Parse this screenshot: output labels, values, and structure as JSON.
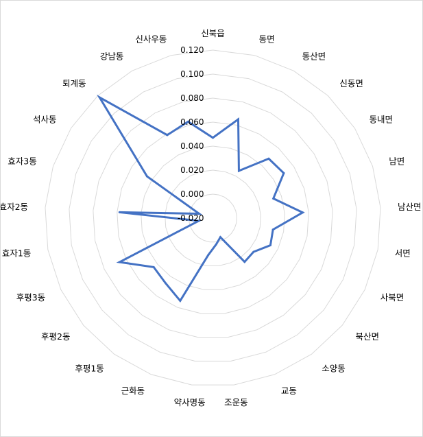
{
  "chart_data": {
    "type": "radar",
    "title": "",
    "categories": [
      "신북읍",
      "동면",
      "동산면",
      "신동면",
      "동내면",
      "남면",
      "남산면",
      "서면",
      "사북면",
      "북산면",
      "소양동",
      "교동",
      "조운동",
      "약사명동",
      "근화동",
      "후평1동",
      "후평2동",
      "후평3동",
      "효자1동",
      "효자2동",
      "효자3동",
      "석사동",
      "퇴계동",
      "강남동",
      "신사우동"
    ],
    "series": [
      {
        "color": "#4472c4",
        "values": [
          0.047,
          0.065,
          0.025,
          0.048,
          0.05,
          0.033,
          0.055,
          0.031,
          0.033,
          0.024,
          0.025,
          -0.003,
          0.002,
          0.011,
          0.054,
          0.047,
          0.044,
          0.066,
          -0.008,
          0.058,
          -0.008,
          0.045,
          0.118,
          0.059,
          0.063
        ]
      }
    ],
    "rlim": [
      -0.02,
      0.12
    ],
    "tick_labels": [
      "-0.020",
      "0.000",
      "0.020",
      "0.040",
      "0.060",
      "0.080",
      "0.100",
      "0.120"
    ],
    "tick_values": [
      -0.02,
      0,
      0.02,
      0.04,
      0.06,
      0.08,
      0.1,
      0.12
    ],
    "grid": true,
    "grid_color": "#d9d9d9",
    "legend": "none"
  }
}
